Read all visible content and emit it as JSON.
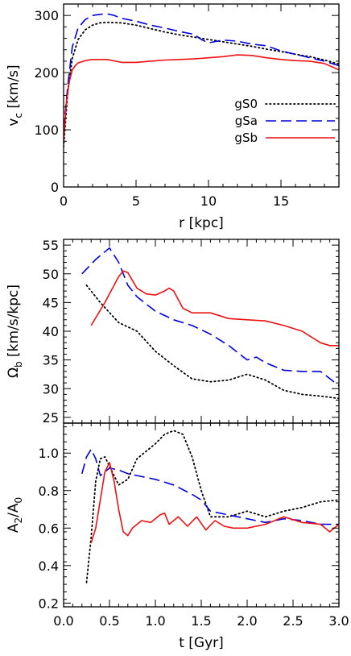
{
  "chart_data": [
    {
      "type": "line",
      "xlabel": "r [kpc]",
      "ylabel_main": "v",
      "ylabel_sub": "c",
      "ylabel_rest": " [km/s]",
      "xlim": [
        0,
        19
      ],
      "ylim": [
        0,
        320
      ],
      "xticks": [
        0,
        5,
        10,
        15
      ],
      "yticks": [
        0,
        100,
        200,
        300
      ],
      "legend_position": "middle-right",
      "series": [
        {
          "name": "gS0",
          "color": "#000000",
          "dash": "dotted",
          "x": [
            0,
            0.3,
            0.6,
            1.0,
            1.5,
            2.0,
            2.5,
            3,
            4,
            5,
            6,
            7,
            8,
            9,
            10,
            11,
            12,
            13,
            14,
            15,
            16,
            17,
            18,
            19
          ],
          "y": [
            70,
            170,
            225,
            258,
            275,
            283,
            287,
            288,
            287,
            283,
            277,
            271,
            266,
            262,
            258,
            254,
            250,
            246,
            241,
            237,
            232,
            228,
            222,
            215
          ]
        },
        {
          "name": "gSa",
          "color": "#0000dd",
          "dash": "dashed",
          "x": [
            0,
            0.3,
            0.6,
            1.0,
            1.5,
            2.0,
            2.5,
            3,
            3.5,
            4,
            5,
            6,
            7,
            8,
            9,
            9.5,
            10,
            11,
            12,
            13,
            14,
            15,
            16,
            17,
            18,
            19
          ],
          "y": [
            100,
            180,
            245,
            278,
            293,
            300,
            302,
            303,
            300,
            295,
            290,
            283,
            278,
            272,
            267,
            258,
            252,
            257,
            255,
            250,
            247,
            238,
            232,
            226,
            220,
            212
          ]
        },
        {
          "name": "gSb",
          "color": "#ee1111",
          "dash": "solid",
          "x": [
            0,
            0.2,
            0.4,
            0.6,
            0.8,
            1.0,
            1.5,
            2.0,
            3,
            4,
            5,
            6,
            7,
            8,
            9,
            10,
            11,
            12,
            13,
            14,
            15,
            16,
            17,
            18,
            19
          ],
          "y": [
            80,
            150,
            185,
            205,
            212,
            217,
            221,
            223,
            223,
            218,
            218,
            220,
            222,
            223,
            224,
            226,
            228,
            231,
            230,
            226,
            223,
            221,
            220,
            216,
            205
          ]
        }
      ]
    },
    {
      "type": "line",
      "xlabel": "",
      "ylabel_main": "Ω",
      "ylabel_sub": "b",
      "ylabel_rest": " [km/s/kpc]",
      "xlim": [
        0,
        3
      ],
      "ylim": [
        24,
        56
      ],
      "yticks": [
        25,
        30,
        35,
        40,
        45,
        50,
        55
      ],
      "series": [
        {
          "name": "gS0",
          "color": "#000000",
          "dash": "dotted",
          "x": [
            0.25,
            0.4,
            0.6,
            0.8,
            1.0,
            1.2,
            1.4,
            1.6,
            1.8,
            2.0,
            2.2,
            2.4,
            2.6,
            2.8,
            3.0
          ],
          "y": [
            48,
            45,
            41.5,
            40,
            36.5,
            34,
            31.7,
            31.2,
            31.5,
            32.5,
            31.5,
            29.7,
            29,
            28.7,
            28.3
          ]
        },
        {
          "name": "gSa",
          "color": "#0000dd",
          "dash": "dashed",
          "x": [
            0.2,
            0.35,
            0.5,
            0.6,
            0.7,
            0.8,
            1.0,
            1.2,
            1.4,
            1.6,
            1.8,
            2.0,
            2.1,
            2.2,
            2.4,
            2.6,
            2.8,
            3.0
          ],
          "y": [
            50,
            52.5,
            54.5,
            52,
            48,
            46,
            43.5,
            42,
            41,
            39.5,
            37.5,
            35,
            35.5,
            34.5,
            33.2,
            33,
            33,
            30.5
          ]
        },
        {
          "name": "gSb",
          "color": "#ee1111",
          "dash": "solid",
          "x": [
            0.3,
            0.45,
            0.6,
            0.65,
            0.7,
            0.8,
            0.9,
            1.0,
            1.1,
            1.15,
            1.2,
            1.3,
            1.4,
            1.6,
            1.8,
            2.0,
            2.2,
            2.4,
            2.6,
            2.8,
            2.9,
            3.0
          ],
          "y": [
            41,
            45,
            49.5,
            50.5,
            50.2,
            47.5,
            46.5,
            46.3,
            47,
            47.5,
            47,
            44,
            43.2,
            43.2,
            42.2,
            42,
            41.8,
            41,
            40,
            38,
            37.5,
            37.5
          ]
        }
      ]
    },
    {
      "type": "line",
      "xlabel": "t [Gyr]",
      "ylabel_main": "A",
      "ylabel_sub": "2",
      "ylabel_rest": "/A",
      "ylabel_sub2": "0",
      "xlim": [
        0,
        3
      ],
      "ylim": [
        0.18,
        1.16
      ],
      "xticks": [
        0.0,
        0.5,
        1.0,
        1.5,
        2.0,
        2.5,
        3.0
      ],
      "xtick_labels": [
        "0.0",
        "0.5",
        "1.0",
        "1.5",
        "2.0",
        "2.5",
        "3.0"
      ],
      "yticks": [
        0.2,
        0.4,
        0.6,
        0.8,
        1.0
      ],
      "ytick_labels": [
        "0.2",
        "0.4",
        "0.6",
        "0.8",
        "1.0"
      ],
      "series": [
        {
          "name": "gS0",
          "color": "#000000",
          "dash": "dotted",
          "x": [
            0.25,
            0.3,
            0.35,
            0.4,
            0.45,
            0.5,
            0.55,
            0.6,
            0.7,
            0.8,
            0.9,
            1.0,
            1.1,
            1.2,
            1.3,
            1.4,
            1.5,
            1.6,
            1.8,
            2.0,
            2.2,
            2.4,
            2.6,
            2.8,
            3.0
          ],
          "y": [
            0.31,
            0.55,
            0.85,
            0.97,
            0.98,
            0.93,
            0.88,
            0.83,
            0.86,
            0.97,
            1.01,
            1.05,
            1.1,
            1.12,
            1.1,
            0.98,
            0.8,
            0.66,
            0.66,
            0.69,
            0.66,
            0.69,
            0.71,
            0.74,
            0.75
          ]
        },
        {
          "name": "gSa",
          "color": "#0000dd",
          "dash": "dashed",
          "x": [
            0.2,
            0.25,
            0.3,
            0.35,
            0.4,
            0.45,
            0.5,
            0.6,
            0.7,
            0.8,
            1.0,
            1.2,
            1.4,
            1.5,
            1.6,
            1.8,
            2.0,
            2.2,
            2.4,
            2.6,
            2.8,
            3.0
          ],
          "y": [
            0.89,
            0.98,
            1.02,
            0.97,
            0.88,
            0.9,
            0.92,
            0.91,
            0.89,
            0.88,
            0.86,
            0.83,
            0.78,
            0.75,
            0.69,
            0.67,
            0.65,
            0.63,
            0.65,
            0.64,
            0.62,
            0.62
          ]
        },
        {
          "name": "gSb",
          "color": "#ee1111",
          "dash": "solid",
          "x": [
            0.3,
            0.35,
            0.4,
            0.45,
            0.5,
            0.55,
            0.6,
            0.65,
            0.7,
            0.75,
            0.85,
            0.95,
            1.05,
            1.1,
            1.15,
            1.25,
            1.35,
            1.45,
            1.55,
            1.65,
            1.75,
            1.85,
            2.0,
            2.2,
            2.4,
            2.6,
            2.8,
            2.9,
            3.0
          ],
          "y": [
            0.52,
            0.6,
            0.75,
            0.9,
            0.95,
            0.85,
            0.7,
            0.58,
            0.56,
            0.6,
            0.64,
            0.63,
            0.67,
            0.68,
            0.62,
            0.66,
            0.61,
            0.66,
            0.59,
            0.64,
            0.61,
            0.6,
            0.6,
            0.62,
            0.66,
            0.63,
            0.62,
            0.58,
            0.62
          ]
        }
      ]
    }
  ]
}
